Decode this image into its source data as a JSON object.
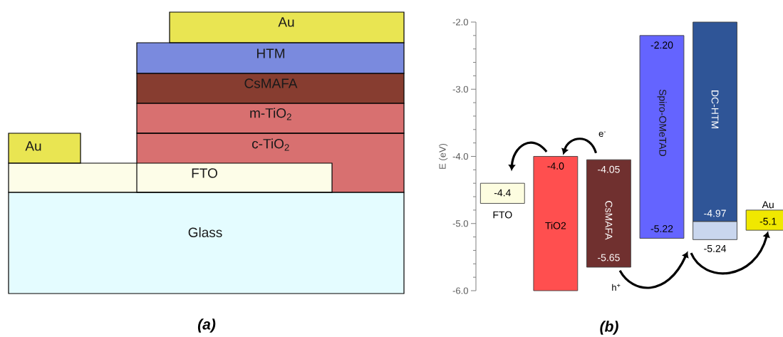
{
  "chart_data": [
    {
      "type": "other",
      "title": "(a)",
      "annotations": [
        "Au",
        "HTM",
        "CsMAFA",
        "m-TiO$_{2}$",
        "c-TiO$_{2}$",
        "Au",
        "FTO",
        "Glass"
      ]
    },
    {
      "type": "bar",
      "title": "(b)",
      "ylabel": "E (eV)",
      "categories": [
        "FTO",
        "TiO2",
        "CsMAFA",
        "Spiro-OMeTAD",
        "DC-HTM",
        "Au"
      ],
      "series": [
        {
          "values": [
            0.3,
            2.0,
            1.6,
            3.02,
            2.97,
            0.3
          ],
          "base": [
            -4.7,
            -6.0,
            -5.65,
            -5.22,
            -4.97,
            -5.1
          ],
          "colors": [
            "#fdfde0",
            "#ff4f4f",
            "#70302f",
            "#6464ff",
            "#2f5597",
            "#f0e800"
          ]
        },
        {
          "values": [
            null,
            null,
            null,
            null,
            0.27,
            null
          ],
          "base": [
            null,
            null,
            null,
            null,
            -5.24,
            null
          ],
          "colors": [
            null,
            null,
            null,
            null,
            "#c9d6ee",
            null
          ]
        }
      ],
      "ylim": [
        -6.0,
        -2.0
      ],
      "yticks": [
        {
          "value": -6.0,
          "label": "-6.0"
        },
        {
          "value": -5.0,
          "label": "-5.0"
        },
        {
          "value": -4.0,
          "label": "-4.0"
        },
        {
          "value": -3.0,
          "label": "-3.0"
        },
        {
          "value": -2.0,
          "label": "-2.0"
        }
      ],
      "tick_labels": "y",
      "annotations": [
        {
          "text": "-4.4",
          "x": "FTO",
          "y": -4.4
        },
        {
          "text": "-4.0",
          "x": "TiO2",
          "y": -4.0
        },
        {
          "text": "-4.05",
          "x": "CsMAFA",
          "y": -4.05
        },
        {
          "text": "-5.65",
          "x": "CsMAFA",
          "y": -5.65
        },
        {
          "text": "-2.20",
          "x": "Spiro-OMeTAD",
          "y": -2.2
        },
        {
          "text": "-5.22",
          "x": "Spiro-OMeTAD",
          "y": -5.22
        },
        {
          "text": "-4.97",
          "x": "DC-HTM",
          "y": -4.97
        },
        {
          "text": "-5.24",
          "x": "DC-HTM",
          "y": -5.24
        },
        {
          "text": "-5.1",
          "x": "Au",
          "y": -5.1
        },
        "e$^{-}$",
        "h$^{+}$"
      ]
    }
  ]
}
